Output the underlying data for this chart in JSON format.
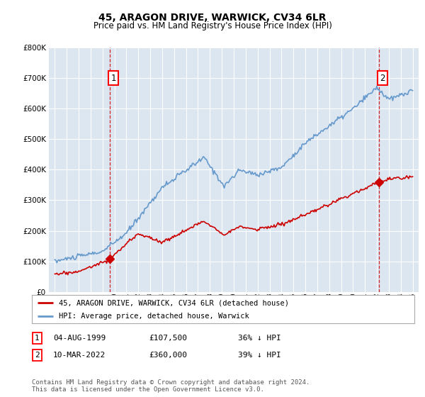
{
  "title": "45, ARAGON DRIVE, WARWICK, CV34 6LR",
  "subtitle": "Price paid vs. HM Land Registry's House Price Index (HPI)",
  "ylim": [
    0,
    800000
  ],
  "yticks": [
    0,
    100000,
    200000,
    300000,
    400000,
    500000,
    600000,
    700000,
    800000
  ],
  "ytick_labels": [
    "£0",
    "£100K",
    "£200K",
    "£300K",
    "£400K",
    "£500K",
    "£600K",
    "£700K",
    "£800K"
  ],
  "background_color": "#ffffff",
  "plot_bg_color": "#dce6f1",
  "grid_color": "#ffffff",
  "red_color": "#cc0000",
  "blue_color": "#6699cc",
  "marker1_year": 1999.6,
  "marker1_value": 107500,
  "marker1_label": "1",
  "marker1_date": "04-AUG-1999",
  "marker1_price": "£107,500",
  "marker1_hpi": "36% ↓ HPI",
  "marker2_year": 2022.17,
  "marker2_value": 360000,
  "marker2_label": "2",
  "marker2_date": "10-MAR-2022",
  "marker2_price": "£360,000",
  "marker2_hpi": "39% ↓ HPI",
  "vline_color": "#cc0000",
  "legend_label_red": "45, ARAGON DRIVE, WARWICK, CV34 6LR (detached house)",
  "legend_label_blue": "HPI: Average price, detached house, Warwick",
  "footnote": "Contains HM Land Registry data © Crown copyright and database right 2024.\nThis data is licensed under the Open Government Licence v3.0."
}
